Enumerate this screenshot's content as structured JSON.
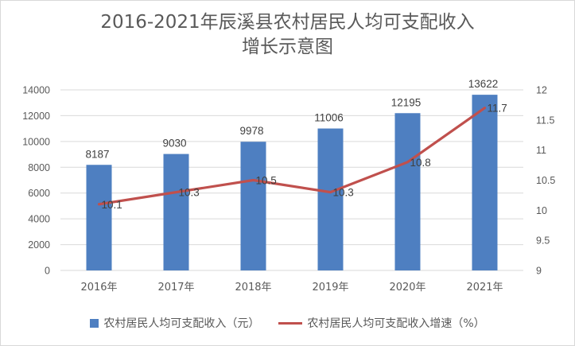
{
  "title_line1": "2016-2021年辰溪县农村居民人均可支配收入",
  "title_line2": "增长示意图",
  "colors": {
    "bar": "#4e7fc1",
    "line": "#c0504d",
    "grid": "#d9d9d9"
  },
  "chart_data": {
    "type": "bar",
    "title": "2016-2021年辰溪县农村居民人均可支配收入增长示意图",
    "categories": [
      "2016年",
      "2017年",
      "2018年",
      "2019年",
      "2020年",
      "2021年"
    ],
    "series": [
      {
        "name": "农村居民人均可支配收入（元）",
        "type": "bar",
        "axis": "left",
        "values": [
          8187,
          9030,
          9978,
          11006,
          12195,
          13622
        ]
      },
      {
        "name": "农村居民人均可支配收入增速（%）",
        "type": "line",
        "axis": "right",
        "values": [
          10.1,
          10.3,
          10.5,
          10.3,
          10.8,
          11.7
        ]
      }
    ],
    "ylim": [
      0,
      14000
    ],
    "yticks": [
      "0",
      "2000",
      "4000",
      "6000",
      "8000",
      "10000",
      "12000",
      "14000"
    ],
    "y2lim": [
      9,
      12
    ],
    "y2ticks": [
      "9",
      "9.5",
      "10",
      "10.5",
      "11",
      "11.5",
      "12"
    ],
    "grid": true,
    "legend_position": "bottom"
  }
}
